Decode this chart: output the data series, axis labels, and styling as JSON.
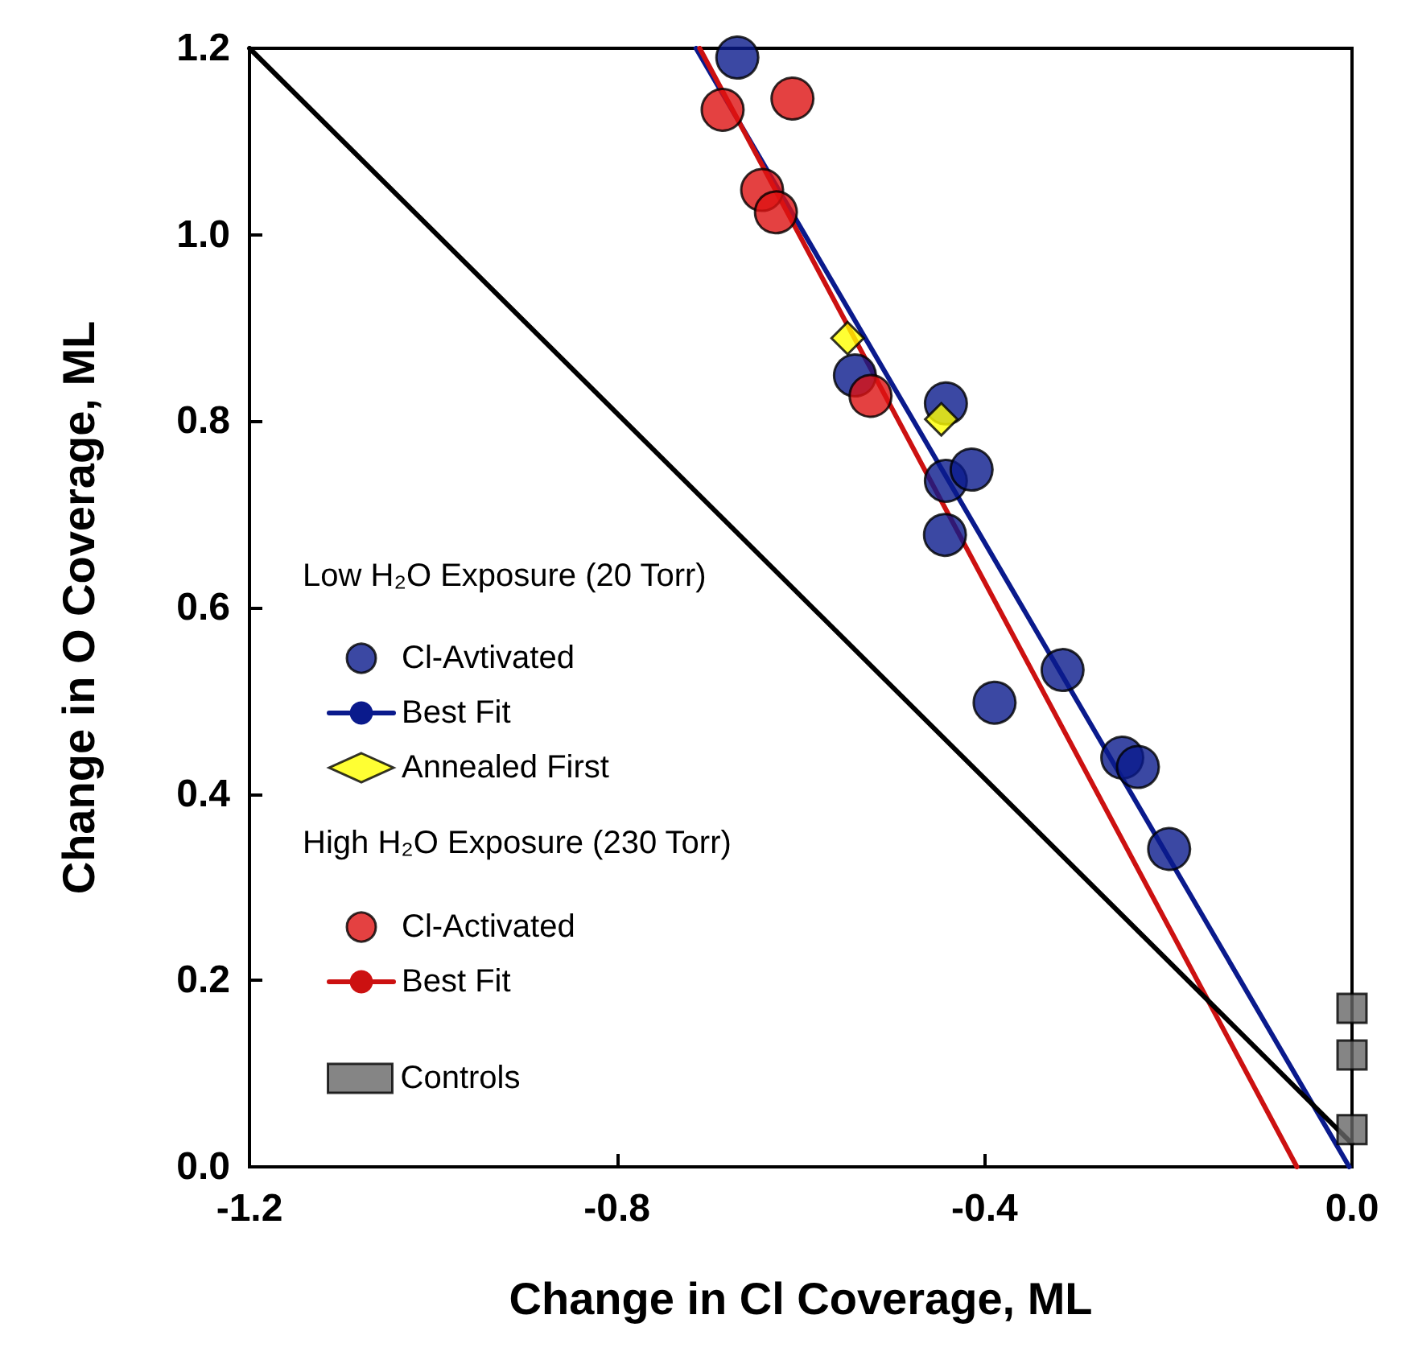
{
  "chart_data": {
    "type": "scatter",
    "xlabel": "Change in Cl Coverage, ML",
    "ylabel": "Change in O Coverage, ML",
    "xlim": [
      -1.2,
      0
    ],
    "xticks": [
      {
        "value": -1.2,
        "label": "-1.2"
      },
      {
        "value": -0.8,
        "label": "-0.8"
      },
      {
        "value": -0.4,
        "label": "-0.4"
      },
      {
        "value": 0,
        "label": "0.0"
      }
    ],
    "ylim": [
      0,
      1.2
    ],
    "yticks": [
      {
        "value": 0,
        "label": "0.0"
      },
      {
        "value": 0.2,
        "label": "0.2"
      },
      {
        "value": 0.4,
        "label": "0.4"
      },
      {
        "value": 0.6,
        "label": "0.6"
      },
      {
        "value": 0.8,
        "label": "0.8"
      },
      {
        "value": 1,
        "label": "1.0"
      },
      {
        "value": 1.2,
        "label": "1.2"
      }
    ],
    "grid": false,
    "legend": "left",
    "annotations": [
      "Low H₂O Exposure (20 Torr)",
      "High H₂O Exposure (230 Torr)"
    ],
    "series": [
      {
        "name": "Cl-Avtivated",
        "marker": "circle",
        "color": "#0a1a8c",
        "x": [
          -0.669,
          -0.541,
          -0.442,
          -0.442,
          -0.414,
          -0.443,
          -0.389,
          -0.315,
          -0.25,
          -0.233,
          -0.199
        ],
        "values": [
          1.19,
          0.849,
          0.819,
          0.736,
          0.748,
          0.678,
          0.498,
          0.533,
          0.439,
          0.429,
          0.341
        ]
      },
      {
        "name": "Best Fit",
        "type": "line",
        "marker": "none",
        "color": "#0a1a8c",
        "x": [
          -0.714,
          -0.003
        ],
        "values": [
          1.2,
          0
        ]
      },
      {
        "name": "Annealed First",
        "marker": "diamond",
        "color": "#ffff00",
        "x": [
          -0.549,
          -0.447
        ],
        "values": [
          0.889,
          0.802
        ]
      },
      {
        "name": "Cl-Activated",
        "marker": "circle",
        "color": "#dd1111",
        "x": [
          -0.685,
          -0.609,
          -0.642,
          -0.627,
          -0.524
        ],
        "values": [
          1.134,
          1.146,
          1.048,
          1.024,
          0.827
        ]
      },
      {
        "name": "Best Fit",
        "type": "line",
        "marker": "none",
        "color": "#cc1111",
        "x": [
          -0.71,
          -0.06
        ],
        "values": [
          1.2,
          0
        ]
      },
      {
        "name": "Controls",
        "marker": "square",
        "color": "#666666",
        "x": [
          0,
          0,
          0
        ],
        "values": [
          0.17,
          0.12,
          0.04
        ]
      },
      {
        "type": "line",
        "marker": "none",
        "color": "#000000",
        "x": [
          -1.2,
          0
        ],
        "values": [
          1.2,
          0.025
        ]
      }
    ]
  }
}
